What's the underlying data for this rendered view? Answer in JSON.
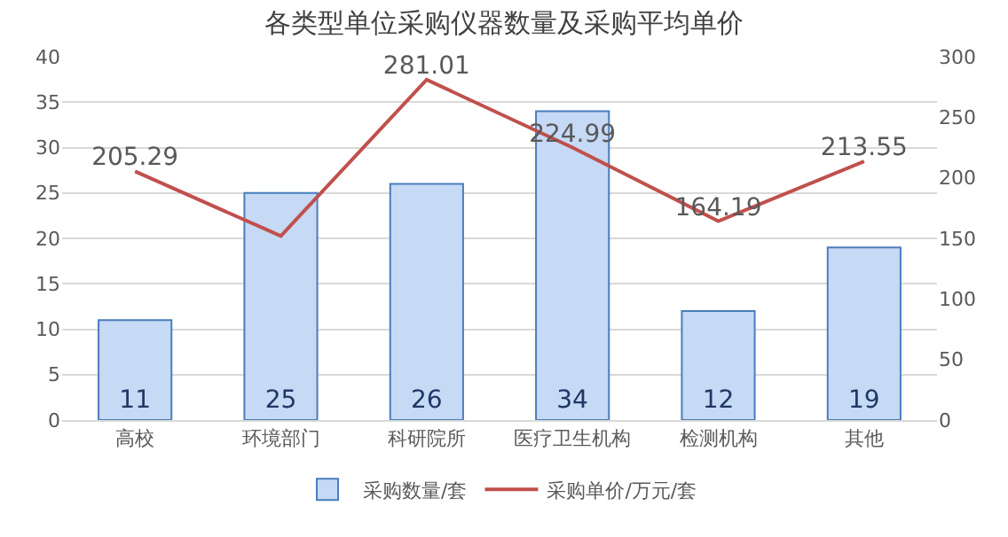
{
  "chart_data": {
    "type": "bar",
    "title": "各类型单位采购仪器数量及采购平均单价",
    "categories": [
      "高校",
      "环境部门",
      "科研院所",
      "医疗卫生机构",
      "检测机构",
      "其他"
    ],
    "series": [
      {
        "name": "采购数量/套",
        "color": "#c6d9f5",
        "values": [
          11,
          25,
          26,
          34,
          12,
          19
        ],
        "data_labels": true
      },
      {
        "name": "采购单价/万元/套",
        "type": "line",
        "axis": "y2",
        "color": "#c0504d",
        "values": [
          205.29,
          152,
          281.01,
          224.99,
          164.19,
          213.55
        ],
        "value_labels": [
          "205.29",
          null,
          "281.01",
          "224.99",
          "164.19",
          "213.55"
        ]
      }
    ],
    "ylim": [
      0,
      40
    ],
    "yticks": [
      0,
      5,
      10,
      15,
      20,
      25,
      30,
      35,
      40
    ],
    "y2lim": [
      0,
      300
    ],
    "y2ticks": [
      0,
      50,
      100,
      150,
      200,
      250,
      300
    ],
    "grid": "y",
    "legend": "bottom",
    "marker": "none",
    "line_style": "solid"
  }
}
